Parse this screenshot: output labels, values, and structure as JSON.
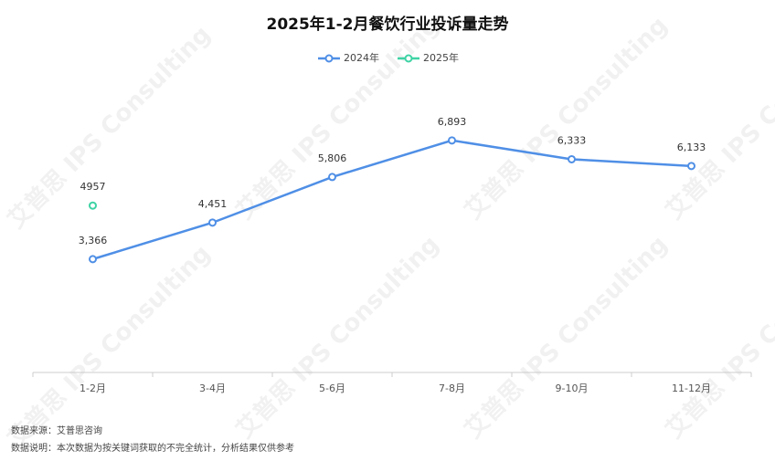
{
  "chart_data": {
    "type": "line",
    "title": "2025年1-2月餐饮行业投诉量走势",
    "categories": [
      "1-2月",
      "3-4月",
      "5-6月",
      "7-8月",
      "9-10月",
      "11-12月"
    ],
    "series": [
      {
        "name": "2024年",
        "color": "#4f8fe6",
        "values": [
          3366,
          4451,
          5806,
          6893,
          6333,
          6133
        ],
        "value_labels": [
          "3,366",
          "4,451",
          "5,806",
          "6,893",
          "6,333",
          "6,133"
        ]
      },
      {
        "name": "2025年",
        "color": "#3ed3a4",
        "values": [
          4957,
          null,
          null,
          null,
          null,
          null
        ],
        "value_labels": [
          "4957",
          null,
          null,
          null,
          null,
          null
        ]
      }
    ],
    "ylim": [
      0,
      8000
    ],
    "legend": "top",
    "watermark": "艾普思 IPS Consulting",
    "source": "数据来源：艾普思咨询",
    "note": "数据说明：本次数据为按关键词获取的不完全统计，分析结果仅供参考"
  }
}
